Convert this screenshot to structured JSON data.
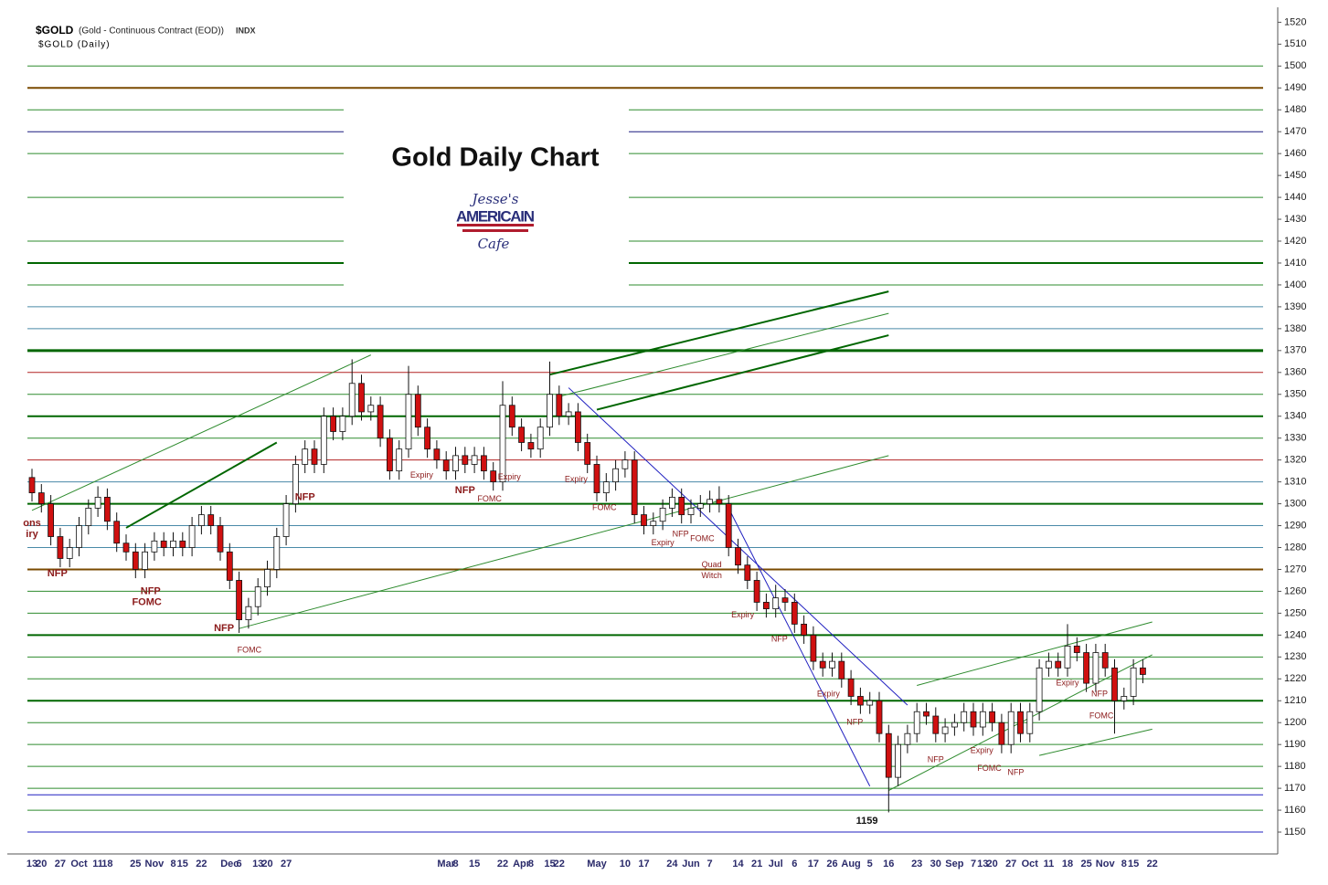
{
  "chart_data": {
    "type": "candlestick",
    "title": "Gold Daily Chart",
    "symbol": "$GOLD",
    "description": "(Gold - Continuous Contract (EOD))",
    "exchange": "INDX",
    "subtitle": "$GOLD (Daily)",
    "logo": {
      "top": "Jesse's",
      "middle": "AMERICAIN",
      "bottom": "Cafe"
    },
    "categories": [
      "13",
      "20",
      null,
      "27",
      null,
      "Oct",
      null,
      "11",
      "18",
      null,
      null,
      "25",
      null,
      "Nov",
      null,
      "8",
      "15",
      null,
      "22",
      null,
      null,
      "Dec",
      "6",
      null,
      "13",
      "20",
      null,
      "27",
      null,
      null,
      null,
      null,
      null,
      null,
      null,
      null,
      null,
      null,
      null,
      null,
      null,
      null,
      null,
      null,
      "Mar",
      "8",
      null,
      "15",
      null,
      null,
      "22",
      null,
      "Apr",
      "8",
      null,
      "15",
      "22",
      null,
      null,
      null,
      "May",
      null,
      null,
      "10",
      null,
      "17",
      null,
      null,
      "24",
      null,
      "Jun",
      null,
      "7",
      null,
      null,
      "14",
      null,
      "21",
      null,
      "Jul",
      null,
      "6",
      null,
      "17",
      null,
      "26",
      null,
      "Aug",
      null,
      "5",
      null,
      "16",
      null,
      null,
      "23",
      null,
      "30",
      null,
      "Sep",
      null,
      "7",
      "13",
      "20",
      null,
      "27",
      null,
      "Oct",
      null,
      "11",
      null,
      "18",
      null,
      "25",
      null,
      "Nov",
      null,
      "8",
      "15",
      null,
      "22"
    ],
    "open": [
      1312,
      1305,
      1300,
      1285,
      1275,
      1280,
      1290,
      1298,
      1303,
      1292,
      1282,
      1278,
      1270,
      1278,
      1283,
      1280,
      1283,
      1280,
      1290,
      1295,
      1290,
      1278,
      1265,
      1247,
      1253,
      1262,
      1270,
      1285,
      1300,
      1318,
      1325,
      1318,
      1340,
      1333,
      1340,
      1355,
      1342,
      1345,
      1330,
      1315,
      1325,
      1350,
      1335,
      1325,
      1320,
      1315,
      1322,
      1318,
      1322,
      1315,
      1310,
      1345,
      1335,
      1328,
      1325,
      1335,
      1350,
      1340,
      1342,
      1328,
      1318,
      1305,
      1310,
      1316,
      1320,
      1295,
      1290,
      1292,
      1298,
      1303,
      1295,
      1298,
      1300,
      1302,
      1300,
      1280,
      1272,
      1265,
      1255,
      1252,
      1257,
      1255,
      1245,
      1240,
      1228,
      1225,
      1228,
      1220,
      1212,
      1208,
      1210,
      1195,
      1175,
      1190,
      1195,
      1205,
      1203,
      1195,
      1198,
      1200,
      1205,
      1198,
      1205,
      1200,
      1190,
      1205,
      1195,
      1205,
      1225,
      1228,
      1225,
      1235,
      1232,
      1218,
      1232,
      1225,
      1210,
      1212,
      1225,
      null
    ],
    "high": [
      1316,
      1309,
      1304,
      1289,
      1284,
      1294,
      1302,
      1308,
      1307,
      1296,
      1286,
      1282,
      1282,
      1287,
      1287,
      1287,
      1287,
      1294,
      1299,
      1299,
      1294,
      1282,
      1269,
      1257,
      1266,
      1274,
      1289,
      1304,
      1322,
      1329,
      1329,
      1344,
      1344,
      1344,
      1366,
      1359,
      1349,
      1349,
      1334,
      1329,
      1363,
      1354,
      1339,
      1329,
      1324,
      1326,
      1326,
      1326,
      1326,
      1319,
      1356,
      1349,
      1339,
      1332,
      1339,
      1365,
      1354,
      1346,
      1346,
      1332,
      1322,
      1314,
      1320,
      1324,
      1324,
      1299,
      1296,
      1302,
      1307,
      1307,
      1302,
      1304,
      1306,
      1308,
      1304,
      1284,
      1276,
      1269,
      1259,
      1263,
      1261,
      1259,
      1249,
      1244,
      1232,
      1232,
      1232,
      1224,
      1216,
      1214,
      1214,
      1199,
      1194,
      1199,
      1209,
      1209,
      1207,
      1202,
      1204,
      1209,
      1209,
      1209,
      1209,
      1204,
      1209,
      1209,
      1209,
      1229,
      1232,
      1232,
      1245,
      1239,
      1236,
      1236,
      1236,
      1229,
      1216,
      1229,
      1229,
      null
    ],
    "low": [
      1301,
      1296,
      1281,
      1271,
      1271,
      1276,
      1286,
      1294,
      1288,
      1278,
      1274,
      1266,
      1266,
      1274,
      1276,
      1276,
      1276,
      1276,
      1286,
      1286,
      1274,
      1261,
      1241,
      1243,
      1249,
      1258,
      1266,
      1281,
      1296,
      1314,
      1314,
      1314,
      1329,
      1329,
      1336,
      1338,
      1338,
      1326,
      1311,
      1311,
      1321,
      1331,
      1321,
      1316,
      1311,
      1311,
      1314,
      1314,
      1311,
      1306,
      1306,
      1331,
      1324,
      1321,
      1321,
      1331,
      1336,
      1336,
      1324,
      1314,
      1301,
      1301,
      1306,
      1312,
      1291,
      1286,
      1286,
      1288,
      1294,
      1291,
      1291,
      1294,
      1296,
      1296,
      1276,
      1268,
      1261,
      1251,
      1248,
      1248,
      1251,
      1241,
      1236,
      1224,
      1221,
      1221,
      1216,
      1208,
      1204,
      1204,
      1191,
      1159,
      1171,
      1186,
      1191,
      1199,
      1191,
      1191,
      1194,
      1196,
      1194,
      1194,
      1196,
      1186,
      1186,
      1191,
      1191,
      1201,
      1221,
      1221,
      1221,
      1228,
      1214,
      1214,
      1221,
      1195,
      1206,
      1208,
      1218,
      null
    ],
    "close": [
      1305,
      1300,
      1285,
      1275,
      1280,
      1290,
      1298,
      1303,
      1292,
      1282,
      1278,
      1270,
      1278,
      1283,
      1280,
      1283,
      1280,
      1290,
      1295,
      1290,
      1278,
      1265,
      1247,
      1253,
      1262,
      1270,
      1285,
      1300,
      1318,
      1325,
      1318,
      1340,
      1333,
      1340,
      1355,
      1342,
      1345,
      1330,
      1315,
      1325,
      1350,
      1335,
      1325,
      1320,
      1315,
      1322,
      1318,
      1322,
      1315,
      1310,
      1345,
      1335,
      1328,
      1325,
      1335,
      1350,
      1340,
      1342,
      1328,
      1318,
      1305,
      1310,
      1316,
      1320,
      1295,
      1290,
      1292,
      1298,
      1303,
      1295,
      1298,
      1300,
      1302,
      1300,
      1280,
      1272,
      1265,
      1255,
      1252,
      1257,
      1255,
      1245,
      1240,
      1228,
      1225,
      1228,
      1220,
      1212,
      1208,
      1210,
      1195,
      1175,
      1190,
      1195,
      1205,
      1203,
      1195,
      1198,
      1200,
      1205,
      1198,
      1205,
      1200,
      1190,
      1205,
      1195,
      1205,
      1225,
      1228,
      1225,
      1235,
      1232,
      1218,
      1232,
      1225,
      1210,
      1212,
      1225,
      1222,
      null
    ],
    "up_color": "#ffffff",
    "down_color": "#d01010",
    "ylim": [
      1140,
      1526
    ],
    "yticks": [
      1150,
      1160,
      1170,
      1180,
      1190,
      1200,
      1210,
      1220,
      1230,
      1240,
      1250,
      1260,
      1270,
      1280,
      1290,
      1300,
      1310,
      1320,
      1330,
      1340,
      1350,
      1360,
      1370,
      1380,
      1390,
      1400,
      1410,
      1420,
      1430,
      1440,
      1450,
      1460,
      1470,
      1480,
      1490,
      1500,
      1510,
      1520
    ],
    "hlines": [
      {
        "value": 1500,
        "color": "#2e8b2e",
        "width": 1
      },
      {
        "value": 1490,
        "color": "#7a4a00",
        "width": 2
      },
      {
        "value": 1480,
        "color": "#2e8b2e",
        "width": 1
      },
      {
        "value": 1470,
        "color": "#1a1a80",
        "width": 1
      },
      {
        "value": 1460,
        "color": "#2e8b2e",
        "width": 1
      },
      {
        "value": 1440,
        "color": "#2e8b2e",
        "width": 1
      },
      {
        "value": 1420,
        "color": "#2e8b2e",
        "width": 1
      },
      {
        "value": 1410,
        "color": "#006600",
        "width": 2
      },
      {
        "value": 1400,
        "color": "#2e8b2e",
        "width": 1
      },
      {
        "value": 1390,
        "color": "#4a8aa8",
        "width": 1
      },
      {
        "value": 1380,
        "color": "#4a8aa8",
        "width": 1
      },
      {
        "value": 1370,
        "color": "#006600",
        "width": 3
      },
      {
        "value": 1360,
        "color": "#b22222",
        "width": 1
      },
      {
        "value": 1350,
        "color": "#2e8b2e",
        "width": 1
      },
      {
        "value": 1340,
        "color": "#006600",
        "width": 2
      },
      {
        "value": 1330,
        "color": "#2e8b2e",
        "width": 1
      },
      {
        "value": 1320,
        "color": "#b22222",
        "width": 1
      },
      {
        "value": 1310,
        "color": "#4a8aa8",
        "width": 1
      },
      {
        "value": 1300,
        "color": "#006600",
        "width": 2
      },
      {
        "value": 1290,
        "color": "#4a8aa8",
        "width": 1
      },
      {
        "value": 1280,
        "color": "#4a8aa8",
        "width": 1
      },
      {
        "value": 1270,
        "color": "#7a4a00",
        "width": 2
      },
      {
        "value": 1260,
        "color": "#2e8b2e",
        "width": 1
      },
      {
        "value": 1250,
        "color": "#2e8b2e",
        "width": 1
      },
      {
        "value": 1240,
        "color": "#006600",
        "width": 2
      },
      {
        "value": 1230,
        "color": "#2e8b2e",
        "width": 1
      },
      {
        "value": 1220,
        "color": "#2e8b2e",
        "width": 1
      },
      {
        "value": 1210,
        "color": "#006600",
        "width": 2
      },
      {
        "value": 1200,
        "color": "#2e8b2e",
        "width": 1
      },
      {
        "value": 1190,
        "color": "#2e8b2e",
        "width": 1
      },
      {
        "value": 1180,
        "color": "#2e8b2e",
        "width": 1
      },
      {
        "value": 1170,
        "color": "#2e8b2e",
        "width": 1
      },
      {
        "value": 1167,
        "color": "#2020c0",
        "width": 1
      },
      {
        "value": 1160,
        "color": "#2e8b2e",
        "width": 1
      },
      {
        "value": 1150,
        "color": "#2020c0",
        "width": 1
      }
    ],
    "trendlines": [
      {
        "x": [
          57,
          93
        ],
        "y": [
          1353,
          1208
        ],
        "color": "#2020c0",
        "width": 1
      },
      {
        "x": [
          74,
          89
        ],
        "y": [
          1298,
          1171
        ],
        "color": "#2020c0",
        "width": 1
      },
      {
        "x": [
          0,
          36
        ],
        "y": [
          1297,
          1368
        ],
        "color": "#2e8b2e",
        "width": 1
      },
      {
        "x": [
          55,
          91
        ],
        "y": [
          1359,
          1397
        ],
        "color": "#006600",
        "width": 2
      },
      {
        "x": [
          56,
          91
        ],
        "y": [
          1349,
          1387
        ],
        "color": "#2e8b2e",
        "width": 1
      },
      {
        "x": [
          60,
          91
        ],
        "y": [
          1343,
          1377
        ],
        "color": "#006600",
        "width": 2
      },
      {
        "x": [
          22,
          91
        ],
        "y": [
          1243,
          1322
        ],
        "color": "#2e8b2e",
        "width": 1
      },
      {
        "x": [
          10,
          26
        ],
        "y": [
          1289,
          1328
        ],
        "color": "#006600",
        "width": 2
      },
      {
        "x": [
          91,
          119
        ],
        "y": [
          1169,
          1231
        ],
        "color": "#2e8b2e",
        "width": 1
      },
      {
        "x": [
          107,
          119
        ],
        "y": [
          1185,
          1197
        ],
        "color": "#2e8b2e",
        "width": 1
      },
      {
        "x": [
          94,
          119
        ],
        "y": [
          1217,
          1246
        ],
        "color": "#2e8b2e",
        "width": 1
      }
    ],
    "annotations": [
      {
        "text": "ons",
        "x": 0,
        "y": 1291,
        "color": "#8b1a1a",
        "bold": true
      },
      {
        "text": "iry",
        "x": 0,
        "y": 1286,
        "color": "#8b1a1a",
        "bold": true
      },
      {
        "text": "NFP",
        "x": 2.7,
        "y": 1268,
        "color": "#8b1a1a",
        "bold": true
      },
      {
        "text": "NFP",
        "x": 12.6,
        "y": 1260,
        "color": "#8b1a1a",
        "bold": true
      },
      {
        "text": "FOMC",
        "x": 12.2,
        "y": 1255,
        "color": "#8b1a1a",
        "bold": true
      },
      {
        "text": "NFP",
        "x": 20.4,
        "y": 1243,
        "color": "#8b1a1a",
        "bold": true
      },
      {
        "text": "FOMC",
        "x": 23.1,
        "y": 1233,
        "color": "#8b1a1a",
        "bold": false
      },
      {
        "text": "NFP",
        "x": 29,
        "y": 1303,
        "color": "#8b1a1a",
        "bold": true
      },
      {
        "text": "Expiry",
        "x": 41.4,
        "y": 1313,
        "color": "#8b1a1a",
        "bold": false
      },
      {
        "text": "NFP",
        "x": 46,
        "y": 1306,
        "color": "#8b1a1a",
        "bold": true
      },
      {
        "text": "FOMC",
        "x": 48.6,
        "y": 1302,
        "color": "#8b1a1a",
        "bold": false
      },
      {
        "text": "Expiry",
        "x": 50.7,
        "y": 1312,
        "color": "#8b1a1a",
        "bold": false
      },
      {
        "text": "Expiry",
        "x": 57.8,
        "y": 1311,
        "color": "#8b1a1a",
        "bold": false
      },
      {
        "text": "FOMC",
        "x": 60.8,
        "y": 1298,
        "color": "#8b1a1a",
        "bold": false
      },
      {
        "text": "NFP",
        "x": 68.9,
        "y": 1286,
        "color": "#8b1a1a",
        "bold": false
      },
      {
        "text": "Expiry",
        "x": 67,
        "y": 1282,
        "color": "#8b1a1a",
        "bold": false
      },
      {
        "text": "FOMC",
        "x": 71.2,
        "y": 1284,
        "color": "#8b1a1a",
        "bold": false
      },
      {
        "text": "Quad",
        "x": 72.2,
        "y": 1272,
        "color": "#8b1a1a",
        "bold": false
      },
      {
        "text": "Witch",
        "x": 72.2,
        "y": 1267,
        "color": "#8b1a1a",
        "bold": false
      },
      {
        "text": "Expiry",
        "x": 75.5,
        "y": 1249,
        "color": "#8b1a1a",
        "bold": false
      },
      {
        "text": "NFP",
        "x": 79.4,
        "y": 1238,
        "color": "#8b1a1a",
        "bold": false
      },
      {
        "text": "Expiry",
        "x": 84.6,
        "y": 1213,
        "color": "#8b1a1a",
        "bold": false
      },
      {
        "text": "NFP",
        "x": 87.4,
        "y": 1200,
        "color": "#8b1a1a",
        "bold": false
      },
      {
        "text": "1159",
        "x": 88.7,
        "y": 1155,
        "color": "#111111",
        "bold": true
      },
      {
        "text": "NFP",
        "x": 96,
        "y": 1183,
        "color": "#8b1a1a",
        "bold": false
      },
      {
        "text": "Expiry",
        "x": 100.9,
        "y": 1187,
        "color": "#8b1a1a",
        "bold": false
      },
      {
        "text": "FOMC",
        "x": 101.7,
        "y": 1179,
        "color": "#8b1a1a",
        "bold": false
      },
      {
        "text": "NFP",
        "x": 104.5,
        "y": 1177,
        "color": "#8b1a1a",
        "bold": false
      },
      {
        "text": "Expiry",
        "x": 110,
        "y": 1218,
        "color": "#8b1a1a",
        "bold": false
      },
      {
        "text": "NFP",
        "x": 113.4,
        "y": 1213,
        "color": "#8b1a1a",
        "bold": false
      },
      {
        "text": "FOMC",
        "x": 113.6,
        "y": 1203,
        "color": "#8b1a1a",
        "bold": false
      }
    ]
  }
}
